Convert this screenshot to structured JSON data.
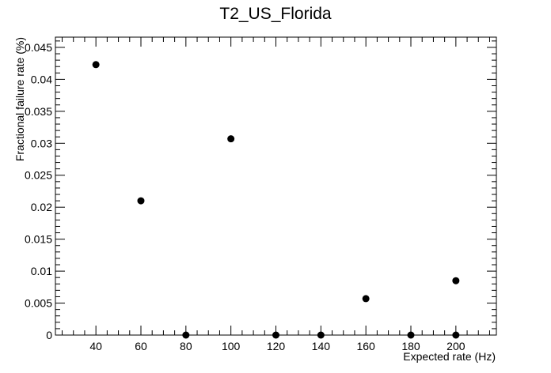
{
  "chart_data": {
    "type": "scatter",
    "title": "T2_US_Florida",
    "xlabel": "Expected rate (Hz)",
    "ylabel": "Fractional failure rate (%)",
    "xlim": [
      22,
      218
    ],
    "ylim": [
      0,
      0.0466
    ],
    "x_ticks": [
      "40",
      "60",
      "80",
      "100",
      "120",
      "140",
      "160",
      "180",
      "200"
    ],
    "y_ticks": [
      "0",
      "0.005",
      "0.01",
      "0.015",
      "0.02",
      "0.025",
      "0.03",
      "0.035",
      "0.04",
      "0.045"
    ],
    "grid": false,
    "legend": "none",
    "marker_color": "#000000",
    "points": [
      {
        "x": 40,
        "y": 0.0423
      },
      {
        "x": 60,
        "y": 0.021
      },
      {
        "x": 80,
        "y": 0.0
      },
      {
        "x": 100,
        "y": 0.0307
      },
      {
        "x": 120,
        "y": 0.0
      },
      {
        "x": 140,
        "y": 0.0
      },
      {
        "x": 160,
        "y": 0.0057
      },
      {
        "x": 180,
        "y": 0.0
      },
      {
        "x": 200,
        "y": 0.0085
      },
      {
        "x": 200,
        "y": 0.0
      }
    ]
  }
}
